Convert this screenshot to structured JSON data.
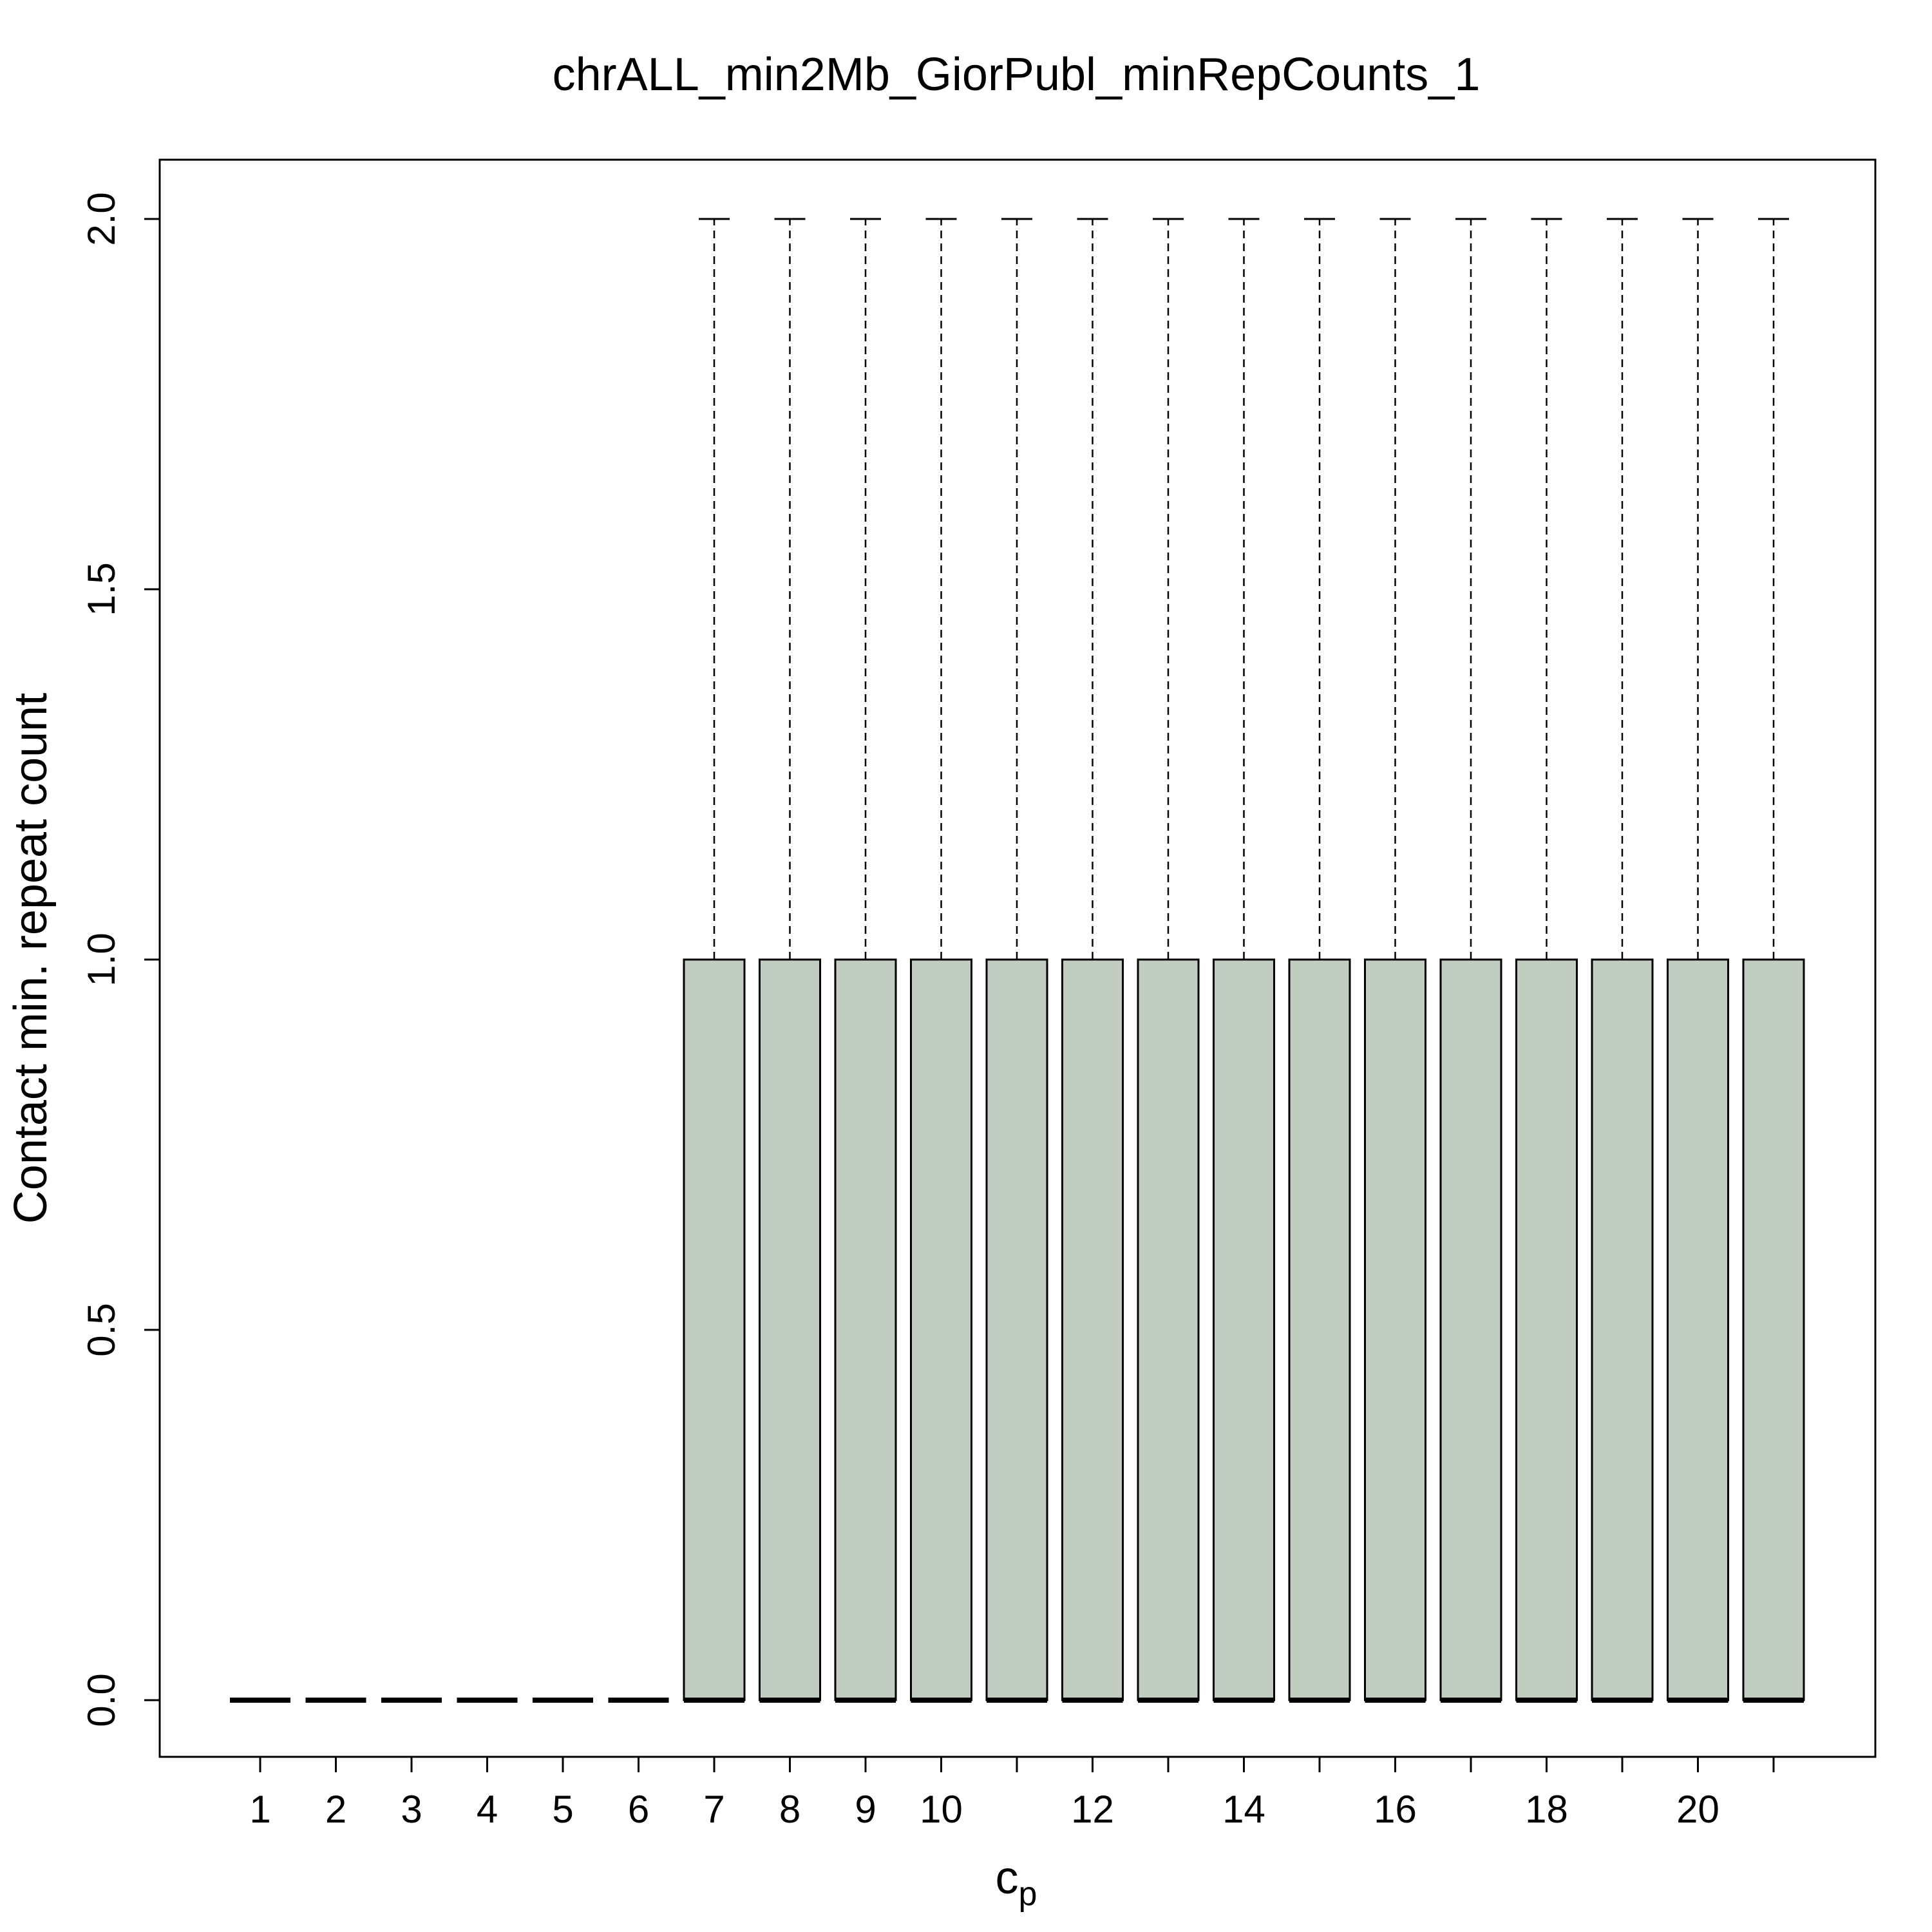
{
  "chart_data": {
    "type": "boxplot",
    "title": "chrALL_min2Mb_GiorPubl_minRepCounts_1",
    "xlabel": "c",
    "xlabel_subscript": "p",
    "ylabel": "Contact min. repeat count",
    "categories": [
      1,
      2,
      3,
      4,
      5,
      6,
      7,
      8,
      9,
      10,
      11,
      12,
      13,
      14,
      15,
      16,
      17,
      18,
      19,
      20,
      21
    ],
    "x_tick_labels": [
      "1",
      "2",
      "3",
      "4",
      "5",
      "6",
      "7",
      "8",
      "9",
      "10",
      "",
      "12",
      "",
      "14",
      "",
      "16",
      "",
      "18",
      "",
      "20",
      ""
    ],
    "y_ticks": [
      "0.0",
      "0.5",
      "1.0",
      "1.5",
      "2.0"
    ],
    "y_tick_values": [
      0,
      0.5,
      1.0,
      1.5,
      2.0
    ],
    "ylim": [
      -0.06,
      2.1
    ],
    "box_color": "#c2cdc2",
    "boxes": [
      {
        "x": 1,
        "min": 0,
        "q1": 0,
        "median": 0,
        "q3": 0,
        "max": 0
      },
      {
        "x": 2,
        "min": 0,
        "q1": 0,
        "median": 0,
        "q3": 0,
        "max": 0
      },
      {
        "x": 3,
        "min": 0,
        "q1": 0,
        "median": 0,
        "q3": 0,
        "max": 0
      },
      {
        "x": 4,
        "min": 0,
        "q1": 0,
        "median": 0,
        "q3": 0,
        "max": 0
      },
      {
        "x": 5,
        "min": 0,
        "q1": 0,
        "median": 0,
        "q3": 0,
        "max": 0
      },
      {
        "x": 6,
        "min": 0,
        "q1": 0,
        "median": 0,
        "q3": 0,
        "max": 0
      },
      {
        "x": 7,
        "min": 0,
        "q1": 0,
        "median": 0,
        "q3": 1,
        "max": 2
      },
      {
        "x": 8,
        "min": 0,
        "q1": 0,
        "median": 0,
        "q3": 1,
        "max": 2
      },
      {
        "x": 9,
        "min": 0,
        "q1": 0,
        "median": 0,
        "q3": 1,
        "max": 2
      },
      {
        "x": 10,
        "min": 0,
        "q1": 0,
        "median": 0,
        "q3": 1,
        "max": 2
      },
      {
        "x": 11,
        "min": 0,
        "q1": 0,
        "median": 0,
        "q3": 1,
        "max": 2
      },
      {
        "x": 12,
        "min": 0,
        "q1": 0,
        "median": 0,
        "q3": 1,
        "max": 2
      },
      {
        "x": 13,
        "min": 0,
        "q1": 0,
        "median": 0,
        "q3": 1,
        "max": 2
      },
      {
        "x": 14,
        "min": 0,
        "q1": 0,
        "median": 0,
        "q3": 1,
        "max": 2
      },
      {
        "x": 15,
        "min": 0,
        "q1": 0,
        "median": 0,
        "q3": 1,
        "max": 2
      },
      {
        "x": 16,
        "min": 0,
        "q1": 0,
        "median": 0,
        "q3": 1,
        "max": 2
      },
      {
        "x": 17,
        "min": 0,
        "q1": 0,
        "median": 0,
        "q3": 1,
        "max": 2
      },
      {
        "x": 18,
        "min": 0,
        "q1": 0,
        "median": 0,
        "q3": 1,
        "max": 2
      },
      {
        "x": 19,
        "min": 0,
        "q1": 0,
        "median": 0,
        "q3": 1,
        "max": 2
      },
      {
        "x": 20,
        "min": 0,
        "q1": 0,
        "median": 0,
        "q3": 1,
        "max": 2
      },
      {
        "x": 21,
        "min": 0,
        "q1": 0,
        "median": 0,
        "q3": 1,
        "max": 2
      }
    ]
  }
}
